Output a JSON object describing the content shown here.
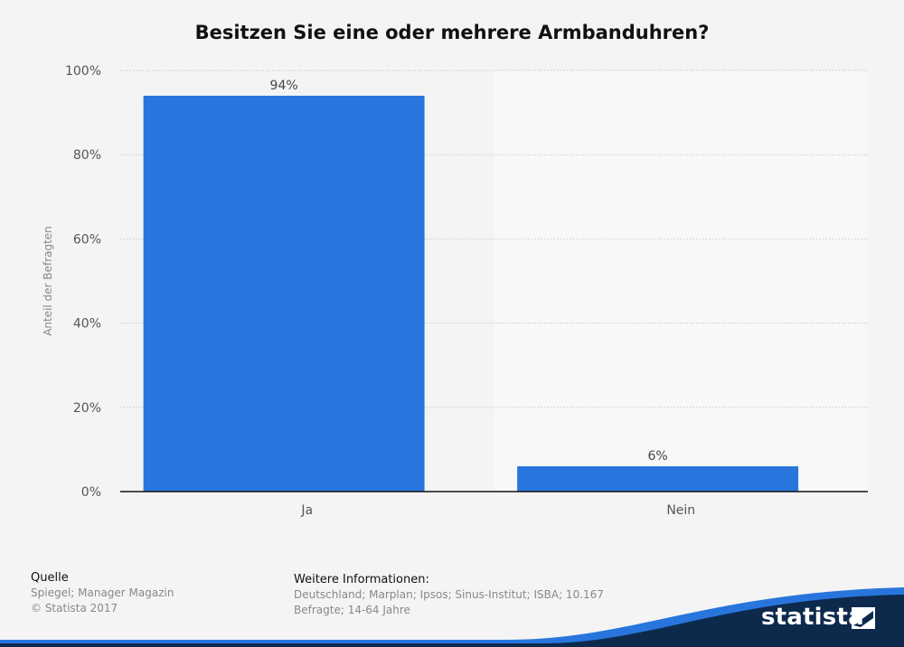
{
  "title": "Besitzen Sie eine oder mehrere Armbanduhren?",
  "colors": {
    "bar": "#2876dd",
    "accent": "#2876dd",
    "brand_dark": "#0d2a4d"
  },
  "chart_data": {
    "type": "bar",
    "title": "Besitzen Sie eine oder mehrere Armbanduhren?",
    "categories": [
      "Ja",
      "Nein"
    ],
    "values": [
      94,
      6
    ],
    "value_labels": [
      "94%",
      "6%"
    ],
    "ylabel": "Anteil der Befragten",
    "xlabel": "",
    "ylim": [
      0,
      100
    ],
    "y_ticks": [
      0,
      20,
      40,
      60,
      80,
      100
    ],
    "y_tick_labels": [
      "0%",
      "20%",
      "40%",
      "60%",
      "80%",
      "100%"
    ],
    "grid": true
  },
  "footer": {
    "source_heading": "Quelle",
    "source_line1": "Spiegel; Manager Magazin",
    "source_line2": "© Statista 2017",
    "info_heading": "Weitere Informationen:",
    "info_line1": "Deutschland; Marplan; Ipsos; Sinus-Institut; ISBA; 10.167",
    "info_line2": "Befragte; 14-64 Jahre"
  },
  "brand": {
    "name": "statista",
    "icon": "statista-logo-icon"
  }
}
